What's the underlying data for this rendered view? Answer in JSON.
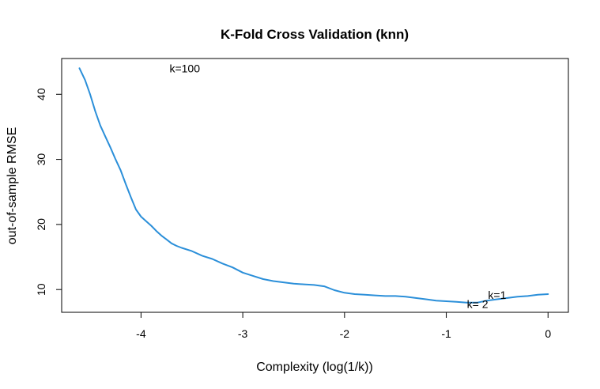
{
  "chart_data": {
    "type": "line",
    "title": "K-Fold Cross Validation (knn)",
    "xlabel": "Complexity (log(1/k))",
    "ylabel": "out-of-sample RMSE",
    "xlim": [
      -4.78,
      0.2
    ],
    "ylim": [
      6.5,
      45.5
    ],
    "x_ticks": [
      -4,
      -3,
      -2,
      -1,
      0
    ],
    "y_ticks": [
      10,
      20,
      30,
      40
    ],
    "grid": false,
    "series": [
      {
        "color": "#2b8fd9",
        "x": [
          -4.605,
          -4.55,
          -4.5,
          -4.45,
          -4.4,
          -4.35,
          -4.3,
          -4.25,
          -4.2,
          -4.15,
          -4.1,
          -4.05,
          -4.0,
          -3.95,
          -3.9,
          -3.85,
          -3.8,
          -3.75,
          -3.7,
          -3.65,
          -3.6,
          -3.5,
          -3.4,
          -3.3,
          -3.2,
          -3.1,
          -3.0,
          -2.9,
          -2.8,
          -2.7,
          -2.6,
          -2.5,
          -2.4,
          -2.3,
          -2.2,
          -2.1,
          -2.0,
          -1.9,
          -1.8,
          -1.7,
          -1.6,
          -1.5,
          -1.4,
          -1.3,
          -1.2,
          -1.1,
          -1.0,
          -0.9,
          -0.8,
          -0.693,
          -0.6,
          -0.5,
          -0.4,
          -0.3,
          -0.2,
          -0.1,
          0.0
        ],
        "y": [
          44.0,
          42.2,
          40.0,
          37.4,
          35.2,
          33.5,
          31.8,
          30.0,
          28.3,
          26.2,
          24.2,
          22.3,
          21.2,
          20.5,
          19.8,
          19.0,
          18.3,
          17.7,
          17.1,
          16.7,
          16.4,
          15.9,
          15.2,
          14.7,
          14.0,
          13.4,
          12.6,
          12.1,
          11.6,
          11.3,
          11.1,
          10.9,
          10.8,
          10.7,
          10.5,
          9.9,
          9.5,
          9.3,
          9.2,
          9.1,
          9.0,
          9.0,
          8.9,
          8.7,
          8.5,
          8.3,
          8.2,
          8.1,
          8.0,
          8.0,
          8.3,
          8.5,
          8.7,
          8.9,
          9.0,
          9.2,
          9.3
        ]
      }
    ],
    "annotations": [
      {
        "text": "k=100",
        "x": -3.57,
        "y": 44.0,
        "color": "#000000"
      },
      {
        "text": "k=1",
        "x": -0.5,
        "y": 9.2,
        "color": "#000000"
      },
      {
        "text": "k= 2",
        "x": -0.693,
        "y": 7.8,
        "color": "#df536b"
      }
    ]
  }
}
